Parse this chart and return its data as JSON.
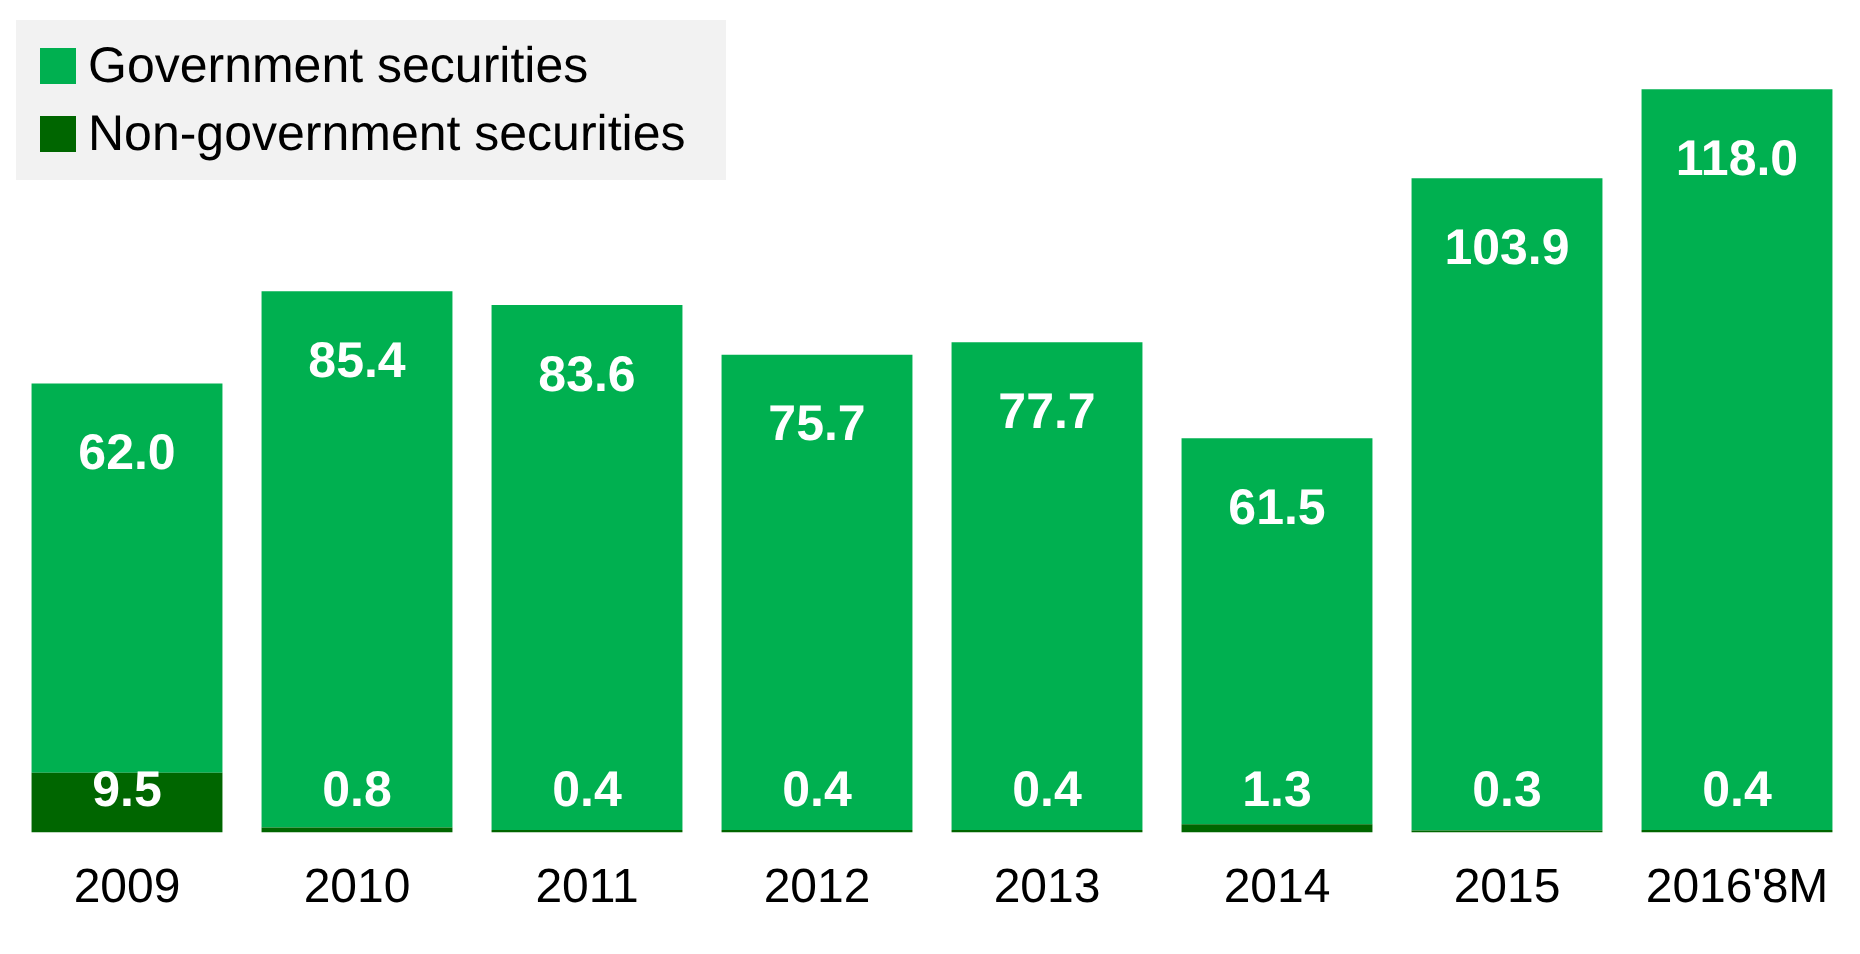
{
  "chart_data": {
    "type": "bar",
    "stacked": true,
    "legend": "top left",
    "grid": false,
    "categories": [
      "2009",
      "2010",
      "2011",
      "2012",
      "2013",
      "2014",
      "2015",
      "2016'8M"
    ],
    "series": [
      {
        "name": "Non-government securities",
        "color": "#006600",
        "values": [
          9.5,
          0.8,
          0.4,
          0.4,
          0.4,
          1.3,
          0.3,
          0.4
        ],
        "value_labels": [
          "9.5",
          "0.8",
          "0.4",
          "0.4",
          "0.4",
          "1.3",
          "0.3",
          "0.4"
        ]
      },
      {
        "name": "Government securities",
        "color": "#00b050",
        "values": [
          62.0,
          85.4,
          83.6,
          75.7,
          77.7,
          61.5,
          103.9,
          118.0
        ],
        "value_labels": [
          "62.0",
          "85.4",
          "83.6",
          "75.7",
          "77.7",
          "61.5",
          "103.9",
          "118.0"
        ]
      }
    ]
  }
}
